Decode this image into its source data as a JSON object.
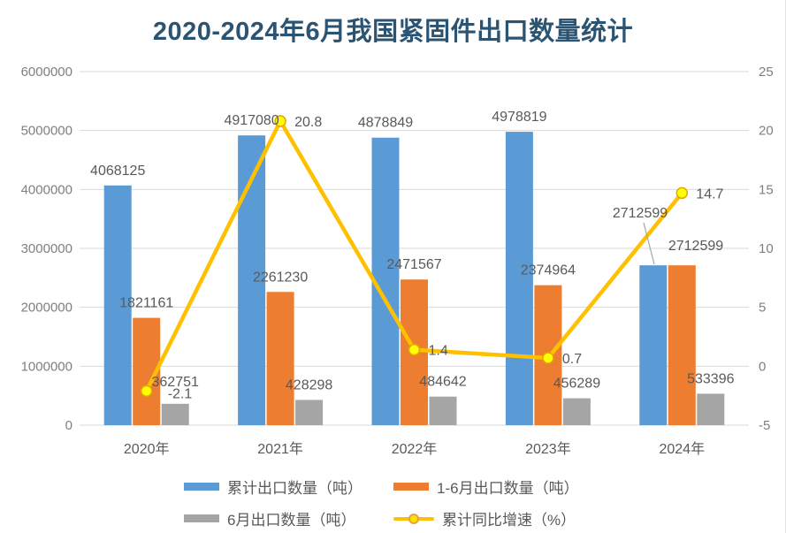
{
  "chart_data": {
    "type": "bar",
    "subtype": "combo-bar-line",
    "title": "2020-2024年6月我国紧固件出口数量统计",
    "categories": [
      "2020年",
      "2021年",
      "2022年",
      "2023年",
      "2024年"
    ],
    "series": [
      {
        "name": "累计出口数量（吨）",
        "type": "bar",
        "color": "#5B9BD5",
        "values": [
          4068125,
          4917080,
          4878849,
          4978819,
          2712599
        ]
      },
      {
        "name": "1-6月出口数量（吨）",
        "type": "bar",
        "color": "#ED7D31",
        "values": [
          1821161,
          2261230,
          2471567,
          2374964,
          2712599
        ]
      },
      {
        "name": "6月出口数量（吨）",
        "type": "bar",
        "color": "#A5A5A5",
        "values": [
          362751,
          428298,
          484642,
          456289,
          533396
        ]
      },
      {
        "name": "累计同比增速（%）",
        "type": "line",
        "axis": "right",
        "color": "#FFC000",
        "marker_color": "#FFFF00",
        "values": [
          -2.1,
          20.8,
          1.4,
          0.7,
          14.7
        ]
      }
    ],
    "left_axis": {
      "min": 0,
      "max": 6000000,
      "ticks": [
        "0",
        "1000000",
        "2000000",
        "3000000",
        "4000000",
        "5000000",
        "6000000"
      ]
    },
    "right_axis": {
      "min": -5,
      "max": 25,
      "ticks": [
        "-5",
        "0",
        "5",
        "10",
        "15",
        "20",
        "25"
      ]
    },
    "grid": true,
    "legend_position": "bottom",
    "data_labels": true
  },
  "colors": {
    "title": "#2B5473",
    "axis_label": "#7F7F7F",
    "data_label": "#595959",
    "gridline": "#D9D9D9",
    "leader_line": "#A6A6A6",
    "marker_stroke": "#E0A800"
  }
}
